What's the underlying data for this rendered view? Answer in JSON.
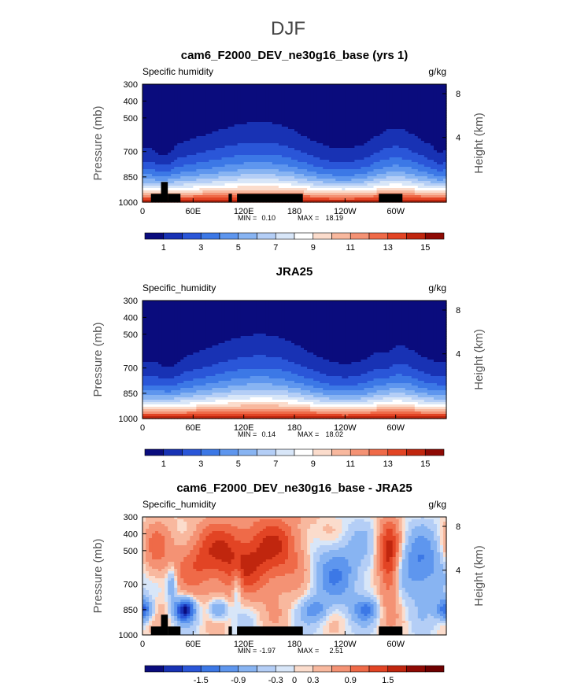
{
  "figure": {
    "title": "DJF"
  },
  "colors": {
    "abs_scale": [
      "#0a0c7d",
      "#1832b4",
      "#2a56d8",
      "#3c78e6",
      "#5e96ee",
      "#88b4f2",
      "#b4cef6",
      "#d8e6f8",
      "#ffffff",
      "#fbdccc",
      "#f8b89e",
      "#f49274",
      "#ef6a48",
      "#e24424",
      "#c0260e",
      "#8e0a04"
    ],
    "diff_scale": [
      "#0a0c7d",
      "#1832b4",
      "#2a56d8",
      "#3c78e6",
      "#5e96ee",
      "#88b4f2",
      "#b4cef6",
      "#d8e6f8",
      "#fbdccc",
      "#f8b89e",
      "#f49274",
      "#ef6a48",
      "#e24424",
      "#c0260e",
      "#8e0a04",
      "#6e0000"
    ],
    "topography": "#000000"
  },
  "chart_data": [
    {
      "type": "heatmap",
      "title": "cam6_F2000_DEV_ne30g16_base (yrs 1)",
      "left_label": "Specific humidity",
      "units": "g/kg",
      "ylabel": "Pressure (mb)",
      "y2label": "Height (km)",
      "x_tick_labels": [
        "0",
        "60E",
        "120E",
        "180",
        "120W",
        "60W"
      ],
      "x_tick_lons": [
        0,
        60,
        120,
        180,
        240,
        300
      ],
      "y_tick_labels": [
        "300",
        "400",
        "500",
        "700",
        "850",
        "1000"
      ],
      "y_tick_values": [
        300,
        400,
        500,
        700,
        850,
        1000
      ],
      "y2_tick_labels": [
        "8",
        "4"
      ],
      "ylim": [
        300,
        1000
      ],
      "xlim": [
        0,
        360
      ],
      "min_label": "MIN =",
      "min_value": "0.10",
      "max_label": "MAX =",
      "max_value": "18.19",
      "colorbar_labels": [
        "1",
        "3",
        "5",
        "7",
        "9",
        "11",
        "13",
        "15"
      ],
      "colorbar_levels": [
        0.5,
        1,
        2,
        3,
        4,
        5,
        6,
        7,
        8,
        9,
        10,
        11,
        12,
        13,
        14,
        15
      ],
      "topography": [
        [
          10,
          30,
          950
        ],
        [
          22,
          30,
          880
        ],
        [
          30,
          45,
          950
        ],
        [
          102,
          106,
          950
        ],
        [
          112,
          190,
          950
        ],
        [
          280,
          308,
          950
        ]
      ]
    },
    {
      "type": "heatmap",
      "title": "JRA25",
      "left_label": "Specific_humidity",
      "units": "g/kg",
      "ylabel": "Pressure (mb)",
      "y2label": "Height (km)",
      "x_tick_labels": [
        "0",
        "60E",
        "120E",
        "180",
        "120W",
        "60W"
      ],
      "x_tick_lons": [
        0,
        60,
        120,
        180,
        240,
        300
      ],
      "y_tick_labels": [
        "300",
        "400",
        "500",
        "700",
        "850",
        "1000"
      ],
      "y_tick_values": [
        300,
        400,
        500,
        700,
        850,
        1000
      ],
      "y2_tick_labels": [
        "8",
        "4"
      ],
      "ylim": [
        300,
        1000
      ],
      "xlim": [
        0,
        360
      ],
      "min_label": "MIN =",
      "min_value": "0.14",
      "max_label": "MAX =",
      "max_value": "18.02",
      "colorbar_labels": [
        "1",
        "3",
        "5",
        "7",
        "9",
        "11",
        "13",
        "15"
      ],
      "colorbar_levels": [
        0.5,
        1,
        2,
        3,
        4,
        5,
        6,
        7,
        8,
        9,
        10,
        11,
        12,
        13,
        14,
        15
      ],
      "topography": []
    },
    {
      "type": "heatmap",
      "title": "cam6_F2000_DEV_ne30g16_base - JRA25",
      "left_label": "Specific_humidity",
      "units": "g/kg",
      "ylabel": "Pressure (mb)",
      "y2label": "Height (km)",
      "x_tick_labels": [
        "0",
        "60E",
        "120E",
        "180",
        "120W",
        "60W"
      ],
      "x_tick_lons": [
        0,
        60,
        120,
        180,
        240,
        300
      ],
      "y_tick_labels": [
        "300",
        "400",
        "500",
        "700",
        "850",
        "1000"
      ],
      "y_tick_values": [
        300,
        400,
        500,
        700,
        850,
        1000
      ],
      "y2_tick_labels": [
        "8",
        "4"
      ],
      "ylim": [
        300,
        1000
      ],
      "xlim": [
        0,
        360
      ],
      "min_label": "MIN =",
      "min_value": "-1.97",
      "max_label": "MAX =",
      "max_value": "2.51",
      "colorbar_labels": [
        "-1.5",
        "-0.9",
        "-0.3",
        "0",
        "0.3",
        "0.9",
        "1.5"
      ],
      "colorbar_levels": [
        -2.1,
        -1.8,
        -1.5,
        -1.2,
        -0.9,
        -0.6,
        -0.3,
        -0.1,
        0,
        0.1,
        0.3,
        0.6,
        0.9,
        1.2,
        1.5,
        1.8
      ],
      "topography": [
        [
          10,
          30,
          950
        ],
        [
          22,
          30,
          880
        ],
        [
          30,
          45,
          950
        ],
        [
          102,
          106,
          950
        ],
        [
          112,
          190,
          950
        ],
        [
          280,
          308,
          950
        ]
      ]
    }
  ]
}
